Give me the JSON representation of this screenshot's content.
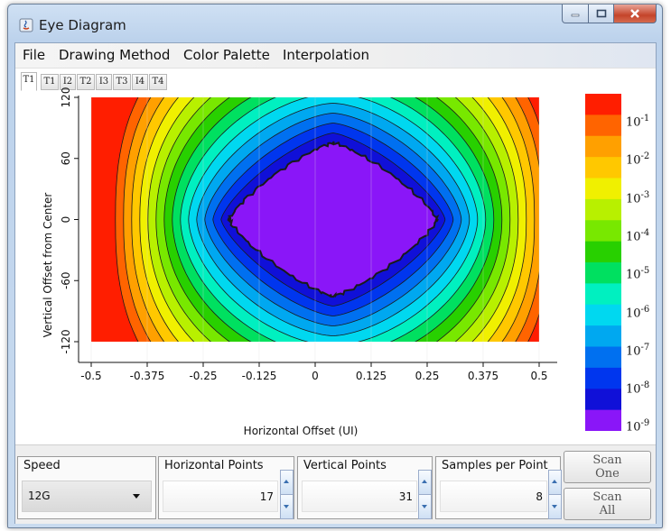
{
  "window": {
    "title": "Eye Diagram"
  },
  "menu": [
    "File",
    "Drawing Method",
    "Color Palette",
    "Interpolation"
  ],
  "tabs": [
    "T1",
    "T1",
    "I2",
    "T2",
    "I3",
    "T3",
    "I4",
    "T4"
  ],
  "colorbar": {
    "colors": [
      "#ff1e00",
      "#ff6400",
      "#ffa000",
      "#ffc800",
      "#f0f000",
      "#b8f000",
      "#78e800",
      "#28d000",
      "#00e060",
      "#00f0c0",
      "#00d8f0",
      "#00a8f0",
      "#0070f0",
      "#0036ee",
      "#1010d8",
      "#8a16f8"
    ],
    "labels": [
      {
        "base": "10",
        "exp": "-1"
      },
      {
        "base": "10",
        "exp": "-2"
      },
      {
        "base": "10",
        "exp": "-3"
      },
      {
        "base": "10",
        "exp": "-4"
      },
      {
        "base": "10",
        "exp": "-5"
      },
      {
        "base": "10",
        "exp": "-6"
      },
      {
        "base": "10",
        "exp": "-7"
      },
      {
        "base": "10",
        "exp": "-8"
      },
      {
        "base": "10",
        "exp": "-9"
      }
    ]
  },
  "chart_data": {
    "type": "heatmap",
    "xlabel": "Horizontal Offset (UI)",
    "ylabel": "Vertical Offset from Center",
    "x_ticks": [
      "-0.5",
      "-0.375",
      "-0.25",
      "-0.125",
      "0",
      "0.125",
      "0.25",
      "0.375",
      "0.5"
    ],
    "y_ticks": [
      "120",
      "60",
      "0",
      "-60",
      "-120"
    ],
    "xlim": [
      -0.5,
      0.5
    ],
    "ylim": [
      -120,
      120
    ],
    "eye_center": {
      "x": 0.04,
      "y": 0
    },
    "eye_half_width_ui": 0.28,
    "eye_half_height": 120,
    "levels": 16,
    "scale": "log",
    "range": [
      "1e-9",
      "1e-1"
    ]
  },
  "controls": {
    "speed": {
      "label": "Speed",
      "value": "12G"
    },
    "horizontal_points": {
      "label": "Horizontal Points",
      "value": "17"
    },
    "vertical_points": {
      "label": "Vertical Points",
      "value": "31"
    },
    "samples_per_point": {
      "label": "Samples per Point",
      "value": "8"
    },
    "scan_one": {
      "line1": "Scan",
      "line2": "One"
    },
    "scan_all": {
      "line1": "Scan",
      "line2": "All"
    }
  }
}
